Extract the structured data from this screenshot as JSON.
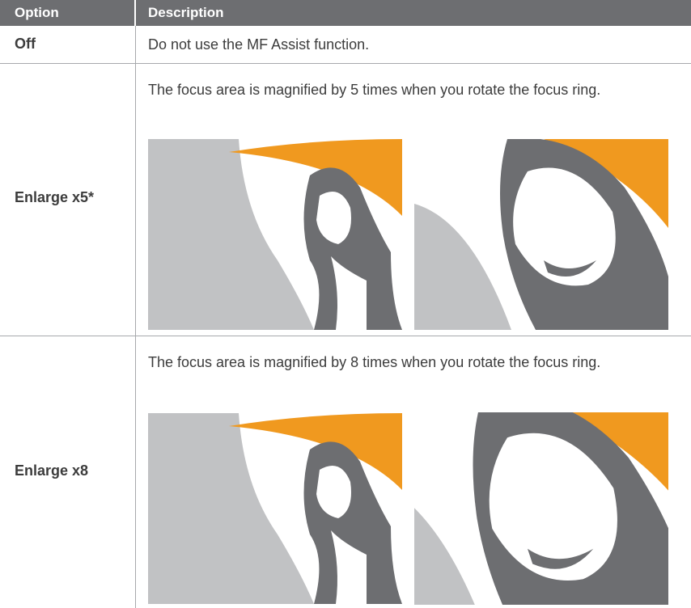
{
  "header": {
    "option": "Option",
    "description": "Description"
  },
  "rows": [
    {
      "option": "Off",
      "description": "Do not use the MF Assist function."
    },
    {
      "option": "Enlarge x5*",
      "description": "The focus area is magnified by 5 times when you rotate the focus ring."
    },
    {
      "option": "Enlarge x8",
      "description": "The focus area is magnified by 8 times when you rotate the focus ring."
    }
  ]
}
